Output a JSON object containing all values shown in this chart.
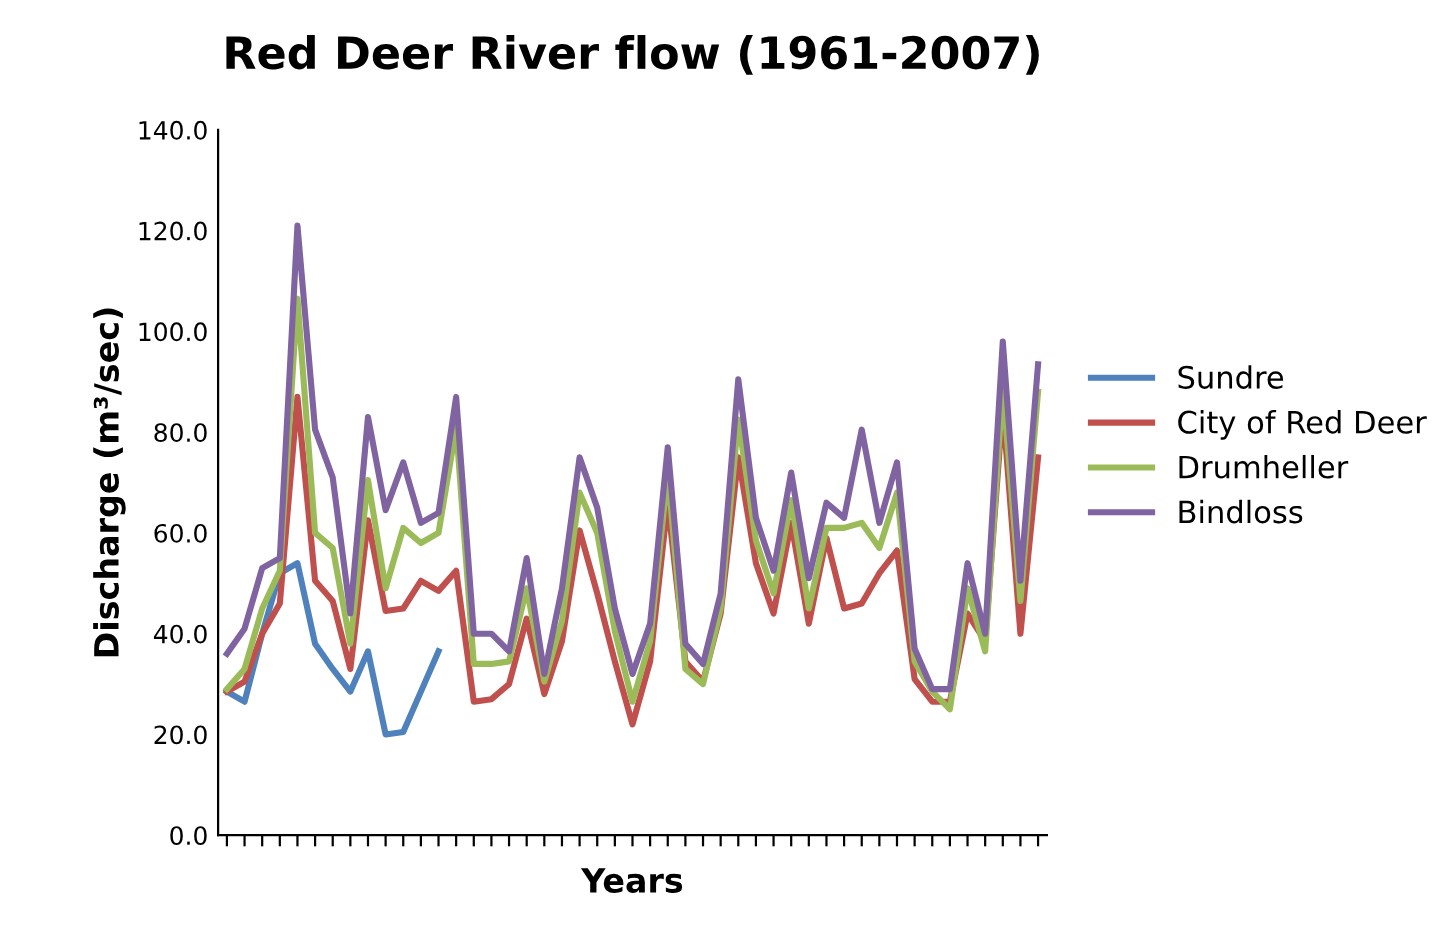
{
  "chart_data": {
    "type": "line",
    "title": "Red Deer River flow (1961-2007)",
    "xlabel": "Years",
    "ylabel": "Discharge (m³/sec)",
    "categories": [
      null,
      null,
      null,
      null,
      null,
      null,
      null,
      null,
      null,
      null,
      null,
      null,
      null,
      null,
      null,
      null,
      null,
      null,
      null,
      null,
      null,
      null,
      null,
      null,
      null,
      null,
      null,
      null,
      null,
      null,
      null,
      null,
      null,
      null,
      null,
      null,
      null,
      null,
      null,
      null,
      null,
      null,
      null,
      null,
      null,
      null,
      null
    ],
    "ylim": [
      0,
      140
    ],
    "yticks": [
      {
        "value": 0,
        "label": "0.0"
      },
      {
        "value": 20,
        "label": "20.0"
      },
      {
        "value": 40,
        "label": "40.0"
      },
      {
        "value": 60,
        "label": "60.0"
      },
      {
        "value": 80,
        "label": "80.0"
      },
      {
        "value": 100,
        "label": "100.0"
      },
      {
        "value": 120,
        "label": "120.0"
      },
      {
        "value": 140,
        "label": "140.0"
      }
    ],
    "grid": false,
    "legend": "right",
    "marker": "none",
    "line_style": "solid",
    "series": [
      {
        "name": "Sundre",
        "color": "#4f81bd",
        "values": [
          28.5,
          26.5,
          40,
          52,
          54,
          38,
          33,
          28.5,
          36.5,
          20,
          20.5,
          28.5,
          36.5,
          null,
          null,
          null,
          null,
          null,
          null,
          null,
          null,
          null,
          null,
          null,
          null,
          null,
          null,
          null,
          null,
          null,
          null,
          null,
          null,
          null,
          null,
          null,
          null,
          null,
          null,
          null,
          null,
          null,
          null,
          null,
          null,
          null,
          null
        ]
      },
      {
        "name": "City of Red Deer",
        "color": "#c0504d",
        "values": [
          28.5,
          30.5,
          40,
          46,
          87,
          50.5,
          46.5,
          33,
          62.5,
          44.5,
          45,
          50.5,
          48.5,
          52.5,
          26.5,
          27,
          30,
          43,
          28,
          38.5,
          60.5,
          48,
          34.5,
          22,
          34.5,
          66,
          34.5,
          30.5,
          44,
          75,
          54,
          44,
          62,
          42,
          59,
          45,
          46,
          52,
          56.5,
          31,
          26.5,
          26.5,
          44,
          38.5,
          85,
          40,
          75
        ]
      },
      {
        "name": "Drumheller",
        "color": "#9bbb59",
        "values": [
          29,
          33,
          45,
          52.5,
          106.5,
          60,
          57,
          38,
          70.5,
          49,
          61,
          58,
          60,
          81,
          34,
          34,
          34.5,
          49,
          30.5,
          42.5,
          68,
          60,
          40.5,
          26.5,
          38.5,
          72,
          33,
          30,
          45,
          82.5,
          58.5,
          48,
          66.5,
          45,
          61,
          61,
          62,
          57,
          68,
          34.5,
          28.5,
          25,
          49,
          36.5,
          89,
          46.5,
          88
        ]
      },
      {
        "name": "Bindloss",
        "color": "#8064a2",
        "values": [
          36,
          41,
          53,
          55,
          121,
          80.5,
          71,
          44,
          83,
          64.5,
          74,
          62,
          64,
          87,
          40,
          40,
          36.5,
          55,
          32,
          49,
          75,
          65,
          45,
          32,
          42,
          77,
          38,
          34,
          48,
          90.5,
          63,
          52.5,
          72,
          51,
          66,
          63,
          80.5,
          62,
          74,
          37,
          29,
          29,
          54,
          40,
          98,
          50.5,
          93.5
        ]
      }
    ]
  }
}
